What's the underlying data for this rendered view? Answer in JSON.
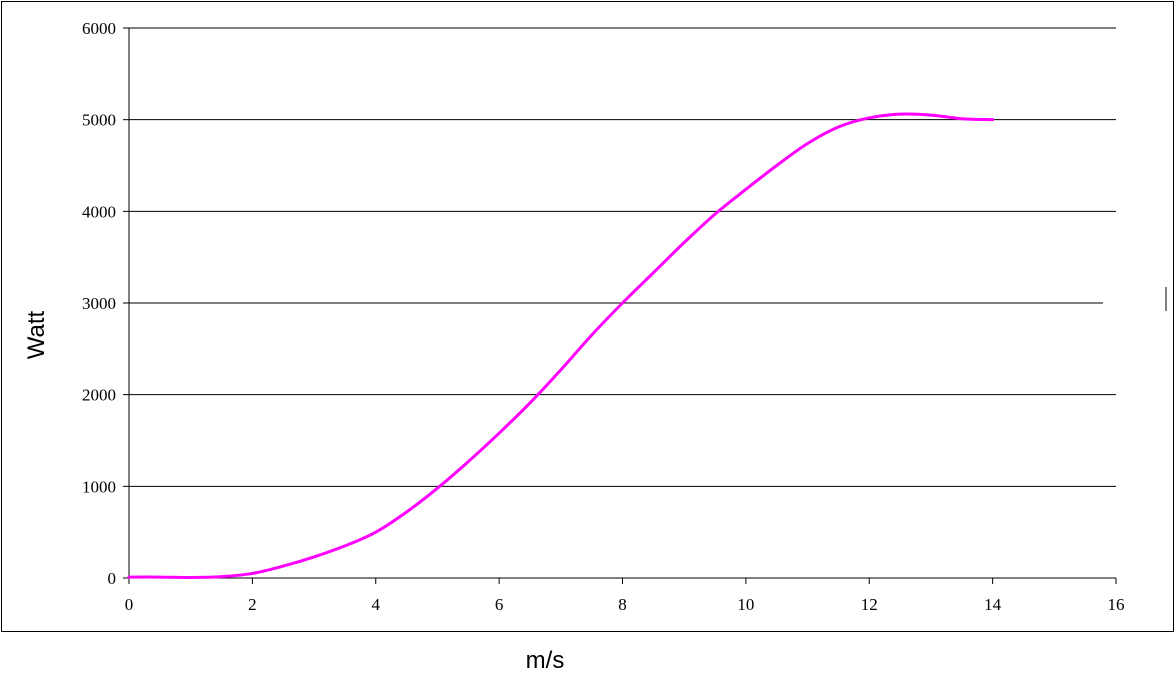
{
  "chart_data": {
    "type": "line",
    "xlabel": "m/s",
    "ylabel": "Watt",
    "xlim": [
      0,
      16
    ],
    "ylim": [
      0,
      6000
    ],
    "x_ticks": [
      "0",
      "2",
      "4",
      "6",
      "8",
      "10",
      "12",
      "14",
      "16"
    ],
    "y_ticks": [
      "0",
      "1000",
      "2000",
      "3000",
      "4000",
      "5000",
      "6000"
    ],
    "grid": "horizontal",
    "series": [
      {
        "color": "#ff00ff",
        "x": [
          0,
          0.5,
          1,
          1.5,
          2,
          2.5,
          3,
          3.5,
          4,
          4.5,
          5,
          5.5,
          6,
          6.5,
          7,
          7.5,
          8,
          8.5,
          9,
          9.5,
          10,
          10.5,
          11,
          11.5,
          12,
          12.5,
          13,
          13.5,
          14
        ],
        "y": [
          10,
          10,
          5,
          15,
          50,
          130,
          230,
          350,
          500,
          720,
          980,
          1270,
          1580,
          1910,
          2270,
          2650,
          3000,
          3330,
          3660,
          3970,
          4240,
          4500,
          4740,
          4920,
          5020,
          5060,
          5050,
          5010,
          5000
        ]
      }
    ]
  }
}
